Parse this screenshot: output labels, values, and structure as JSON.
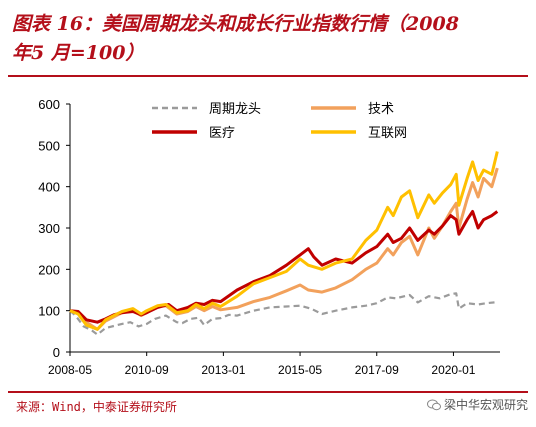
{
  "header": {
    "title_line1": "图表 16：美国周期龙头和成长行业指数行情（2008",
    "title_line2": "年5 月=100）"
  },
  "footer": {
    "source": "来源：Wind，中泰证券研究所",
    "watermark": "梁中华宏观研究"
  },
  "colors": {
    "accent": "#b40f1a",
    "cycle": "#9b9b9b",
    "tech": "#f2a15c",
    "medical": "#c00000",
    "internet": "#ffc000"
  },
  "chart_data": {
    "type": "line",
    "title": "",
    "xlabel": "",
    "ylabel": "",
    "ylim": [
      0,
      600
    ],
    "yticks": [
      0,
      100,
      200,
      300,
      400,
      500,
      600
    ],
    "xlim": [
      "2008-05",
      "2021-06"
    ],
    "xticks": [
      "2008-05",
      "2010-09",
      "2013-01",
      "2015-05",
      "2017-09",
      "2020-01"
    ],
    "grid": false,
    "legend_position": "top",
    "series": [
      {
        "name": "周期龙头",
        "color": "#9b9b9b",
        "dash": "dashed",
        "points": [
          [
            "2008-05",
            100
          ],
          [
            "2008-07",
            88
          ],
          [
            "2008-10",
            62
          ],
          [
            "2009-01",
            52
          ],
          [
            "2009-03",
            42
          ],
          [
            "2009-06",
            58
          ],
          [
            "2009-09",
            63
          ],
          [
            "2009-12",
            68
          ],
          [
            "2010-03",
            72
          ],
          [
            "2010-06",
            62
          ],
          [
            "2010-09",
            68
          ],
          [
            "2010-12",
            80
          ],
          [
            "2011-04",
            88
          ],
          [
            "2011-08",
            72
          ],
          [
            "2011-10",
            70
          ],
          [
            "2012-01",
            80
          ],
          [
            "2012-04",
            83
          ],
          [
            "2012-06",
            65
          ],
          [
            "2012-09",
            80
          ],
          [
            "2012-12",
            82
          ],
          [
            "2013-03",
            90
          ],
          [
            "2013-06",
            88
          ],
          [
            "2013-12",
            100
          ],
          [
            "2014-06",
            108
          ],
          [
            "2014-12",
            110
          ],
          [
            "2015-05",
            112
          ],
          [
            "2015-09",
            105
          ],
          [
            "2016-01",
            92
          ],
          [
            "2016-06",
            100
          ],
          [
            "2016-12",
            108
          ],
          [
            "2017-05",
            112
          ],
          [
            "2017-09",
            118
          ],
          [
            "2018-01",
            132
          ],
          [
            "2018-04",
            130
          ],
          [
            "2018-09",
            138
          ],
          [
            "2018-12",
            120
          ],
          [
            "2019-04",
            135
          ],
          [
            "2019-08",
            130
          ],
          [
            "2019-12",
            140
          ],
          [
            "2020-02",
            142
          ],
          [
            "2020-03",
            105
          ],
          [
            "2020-06",
            118
          ],
          [
            "2020-10",
            115
          ],
          [
            "2021-01",
            118
          ],
          [
            "2021-04",
            120
          ]
        ]
      },
      {
        "name": "技术",
        "color": "#f2a15c",
        "dash": "solid",
        "points": [
          [
            "2008-05",
            100
          ],
          [
            "2008-08",
            95
          ],
          [
            "2008-11",
            72
          ],
          [
            "2009-03",
            55
          ],
          [
            "2009-06",
            75
          ],
          [
            "2009-09",
            85
          ],
          [
            "2009-12",
            95
          ],
          [
            "2010-04",
            100
          ],
          [
            "2010-07",
            88
          ],
          [
            "2010-09",
            95
          ],
          [
            "2011-01",
            110
          ],
          [
            "2011-04",
            112
          ],
          [
            "2011-08",
            92
          ],
          [
            "2011-12",
            98
          ],
          [
            "2012-03",
            110
          ],
          [
            "2012-06",
            100
          ],
          [
            "2012-09",
            110
          ],
          [
            "2012-12",
            102
          ],
          [
            "2013-06",
            108
          ],
          [
            "2013-12",
            122
          ],
          [
            "2014-06",
            132
          ],
          [
            "2014-12",
            148
          ],
          [
            "2015-05",
            162
          ],
          [
            "2015-08",
            150
          ],
          [
            "2016-01",
            145
          ],
          [
            "2016-06",
            155
          ],
          [
            "2016-12",
            175
          ],
          [
            "2017-05",
            200
          ],
          [
            "2017-09",
            215
          ],
          [
            "2018-01",
            250
          ],
          [
            "2018-03",
            235
          ],
          [
            "2018-06",
            265
          ],
          [
            "2018-09",
            280
          ],
          [
            "2018-12",
            235
          ],
          [
            "2019-04",
            300
          ],
          [
            "2019-06",
            275
          ],
          [
            "2019-09",
            305
          ],
          [
            "2019-12",
            340
          ],
          [
            "2020-02",
            360
          ],
          [
            "2020-03",
            300
          ],
          [
            "2020-06",
            370
          ],
          [
            "2020-08",
            410
          ],
          [
            "2020-10",
            375
          ],
          [
            "2020-12",
            420
          ],
          [
            "2021-03",
            400
          ],
          [
            "2021-05",
            445
          ]
        ]
      },
      {
        "name": "医疗",
        "color": "#c00000",
        "dash": "solid",
        "points": [
          [
            "2008-05",
            100
          ],
          [
            "2008-08",
            98
          ],
          [
            "2008-11",
            78
          ],
          [
            "2009-03",
            72
          ],
          [
            "2009-06",
            80
          ],
          [
            "2009-09",
            90
          ],
          [
            "2009-12",
            95
          ],
          [
            "2010-04",
            98
          ],
          [
            "2010-07",
            90
          ],
          [
            "2010-09",
            95
          ],
          [
            "2011-01",
            108
          ],
          [
            "2011-05",
            115
          ],
          [
            "2011-08",
            100
          ],
          [
            "2011-12",
            108
          ],
          [
            "2012-03",
            118
          ],
          [
            "2012-06",
            115
          ],
          [
            "2012-09",
            125
          ],
          [
            "2012-12",
            122
          ],
          [
            "2013-06",
            150
          ],
          [
            "2013-12",
            170
          ],
          [
            "2014-06",
            185
          ],
          [
            "2014-12",
            210
          ],
          [
            "2015-05",
            235
          ],
          [
            "2015-08",
            250
          ],
          [
            "2015-10",
            230
          ],
          [
            "2016-01",
            210
          ],
          [
            "2016-06",
            225
          ],
          [
            "2016-12",
            215
          ],
          [
            "2017-05",
            240
          ],
          [
            "2017-09",
            255
          ],
          [
            "2018-01",
            285
          ],
          [
            "2018-03",
            265
          ],
          [
            "2018-06",
            275
          ],
          [
            "2018-09",
            300
          ],
          [
            "2018-12",
            270
          ],
          [
            "2019-04",
            295
          ],
          [
            "2019-06",
            285
          ],
          [
            "2019-09",
            305
          ],
          [
            "2019-12",
            330
          ],
          [
            "2020-02",
            320
          ],
          [
            "2020-03",
            285
          ],
          [
            "2020-06",
            320
          ],
          [
            "2020-08",
            340
          ],
          [
            "2020-10",
            300
          ],
          [
            "2020-12",
            320
          ],
          [
            "2021-03",
            330
          ],
          [
            "2021-05",
            340
          ]
        ]
      },
      {
        "name": "互联网",
        "color": "#ffc000",
        "dash": "solid",
        "points": [
          [
            "2008-05",
            100
          ],
          [
            "2008-08",
            92
          ],
          [
            "2008-11",
            65
          ],
          [
            "2009-03",
            55
          ],
          [
            "2009-06",
            78
          ],
          [
            "2009-09",
            88
          ],
          [
            "2009-12",
            98
          ],
          [
            "2010-04",
            105
          ],
          [
            "2010-07",
            92
          ],
          [
            "2010-09",
            100
          ],
          [
            "2011-01",
            112
          ],
          [
            "2011-04",
            115
          ],
          [
            "2011-08",
            95
          ],
          [
            "2011-12",
            100
          ],
          [
            "2012-03",
            115
          ],
          [
            "2012-06",
            105
          ],
          [
            "2012-09",
            118
          ],
          [
            "2012-12",
            110
          ],
          [
            "2013-06",
            135
          ],
          [
            "2013-12",
            165
          ],
          [
            "2014-06",
            180
          ],
          [
            "2014-12",
            195
          ],
          [
            "2015-05",
            225
          ],
          [
            "2015-08",
            210
          ],
          [
            "2016-01",
            200
          ],
          [
            "2016-06",
            215
          ],
          [
            "2016-12",
            225
          ],
          [
            "2017-05",
            270
          ],
          [
            "2017-09",
            295
          ],
          [
            "2018-01",
            350
          ],
          [
            "2018-03",
            330
          ],
          [
            "2018-06",
            375
          ],
          [
            "2018-09",
            390
          ],
          [
            "2018-12",
            325
          ],
          [
            "2019-04",
            380
          ],
          [
            "2019-06",
            360
          ],
          [
            "2019-09",
            385
          ],
          [
            "2019-12",
            405
          ],
          [
            "2020-02",
            430
          ],
          [
            "2020-03",
            355
          ],
          [
            "2020-06",
            420
          ],
          [
            "2020-08",
            460
          ],
          [
            "2020-10",
            415
          ],
          [
            "2020-12",
            440
          ],
          [
            "2021-03",
            430
          ],
          [
            "2021-05",
            485
          ]
        ]
      }
    ]
  }
}
